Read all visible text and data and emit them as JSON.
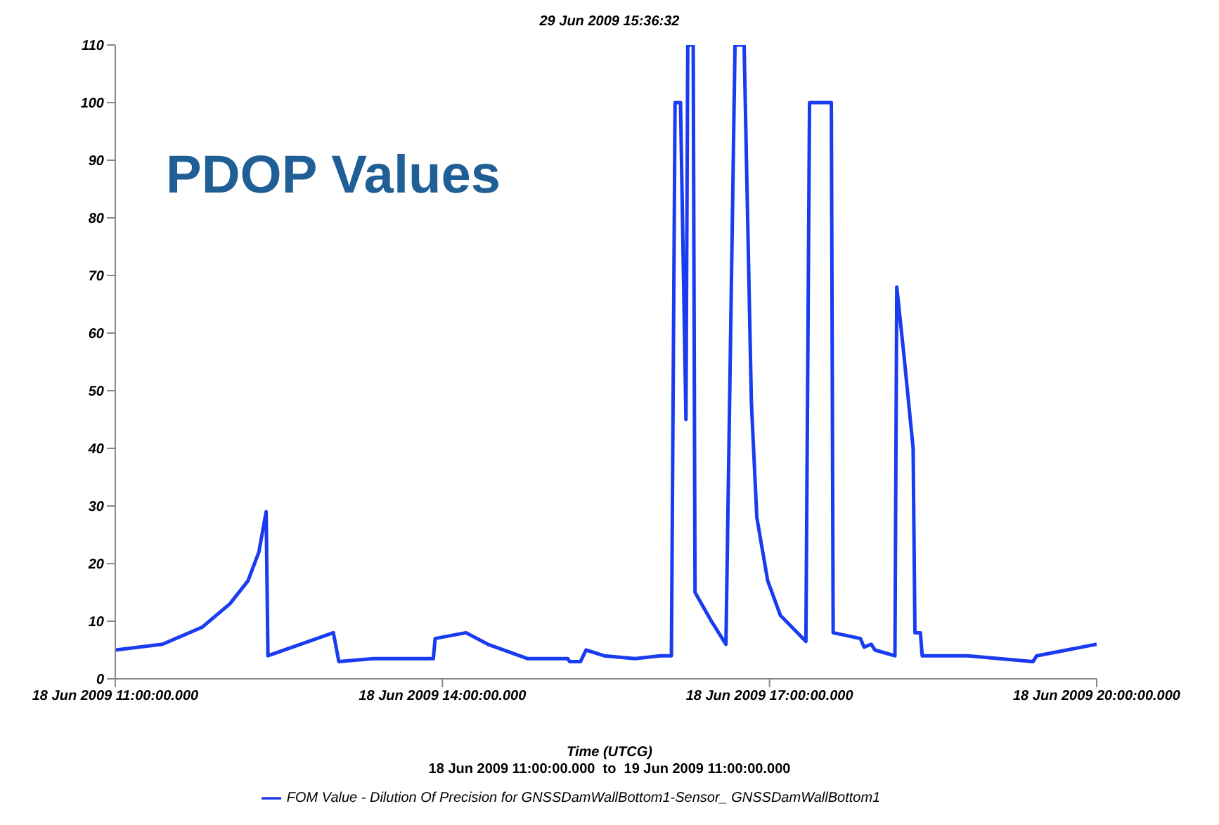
{
  "chart_data": {
    "type": "line",
    "title": "29 Jun 2009 15:36:32",
    "xlabel": "Time (UTCG)",
    "annotations": [
      "PDOP Values",
      "18 Jun 2009 11:00:00.000  to  19 Jun 2009 11:00:00.000"
    ],
    "x": [
      "2009-06-18T11:00",
      "2009-06-18T11:26",
      "2009-06-18T11:48",
      "2009-06-18T12:03",
      "2009-06-18T12:13",
      "2009-06-18T12:19",
      "2009-06-18T12:23",
      "2009-06-18T12:24",
      "2009-06-18T13:00",
      "2009-06-18T13:03",
      "2009-06-18T13:22",
      "2009-06-18T13:55",
      "2009-06-18T13:56",
      "2009-06-18T14:13",
      "2009-06-18T14:25",
      "2009-06-18T14:47",
      "2009-06-18T15:09",
      "2009-06-18T15:10",
      "2009-06-18T15:16",
      "2009-06-18T15:19",
      "2009-06-18T15:29",
      "2009-06-18T15:46",
      "2009-06-18T16:00",
      "2009-06-18T16:06",
      "2009-06-18T16:08",
      "2009-06-18T16:11",
      "2009-06-18T16:14",
      "2009-06-18T16:15",
      "2009-06-18T16:18",
      "2009-06-18T16:19",
      "2009-06-18T16:28",
      "2009-06-18T16:36",
      "2009-06-18T16:41",
      "2009-06-18T16:46",
      "2009-06-18T16:50",
      "2009-06-18T16:53",
      "2009-06-18T16:59",
      "2009-06-18T17:06",
      "2009-06-18T17:20",
      "2009-06-18T17:22",
      "2009-06-18T17:34",
      "2009-06-18T17:35",
      "2009-06-18T17:50",
      "2009-06-18T17:52",
      "2009-06-18T17:56",
      "2009-06-18T17:58",
      "2009-06-18T18:09",
      "2009-06-18T18:10",
      "2009-06-18T18:14",
      "2009-06-18T18:19",
      "2009-06-18T18:20",
      "2009-06-18T18:23",
      "2009-06-18T18:24",
      "2009-06-18T18:49",
      "2009-06-18T19:25",
      "2009-06-18T19:27",
      "2009-06-18T20:00"
    ],
    "series": [
      {
        "name": "FOM Value - Dilution Of Precision for GNSSDamWallBottom1-Sensor_ GNSSDamWallBottom1",
        "color": "#1a3cf0",
        "values": [
          5,
          6,
          9,
          13,
          17,
          22,
          29,
          4,
          8,
          3,
          3.5,
          3.5,
          7,
          8,
          6,
          3.5,
          3.5,
          3,
          3,
          5,
          4,
          3.5,
          4,
          4,
          100,
          100,
          45,
          110,
          110,
          15,
          10,
          6,
          110,
          110,
          48,
          28,
          17,
          11,
          6.5,
          100,
          100,
          8,
          7,
          5.5,
          6,
          5,
          4,
          68,
          56,
          40,
          8,
          8,
          4,
          4,
          3,
          4,
          6
        ]
      }
    ],
    "xlim": [
      "2009-06-18T11:00",
      "2009-06-18T20:00"
    ],
    "xticks": [
      {
        "value": "2009-06-18T11:00",
        "label": "18 Jun 2009 11:00:00.000"
      },
      {
        "value": "2009-06-18T14:00",
        "label": "18 Jun 2009 14:00:00.000"
      },
      {
        "value": "2009-06-18T17:00",
        "label": "18 Jun 2009 17:00:00.000"
      },
      {
        "value": "2009-06-18T20:00",
        "label": "18 Jun 2009 20:00:00.000"
      }
    ],
    "ylim": [
      0,
      110
    ],
    "yticks": [
      0,
      10,
      20,
      30,
      40,
      50,
      60,
      70,
      80,
      90,
      100,
      110
    ],
    "grid": false,
    "legend": "bottom",
    "marker": "none",
    "line_style": "solid"
  }
}
